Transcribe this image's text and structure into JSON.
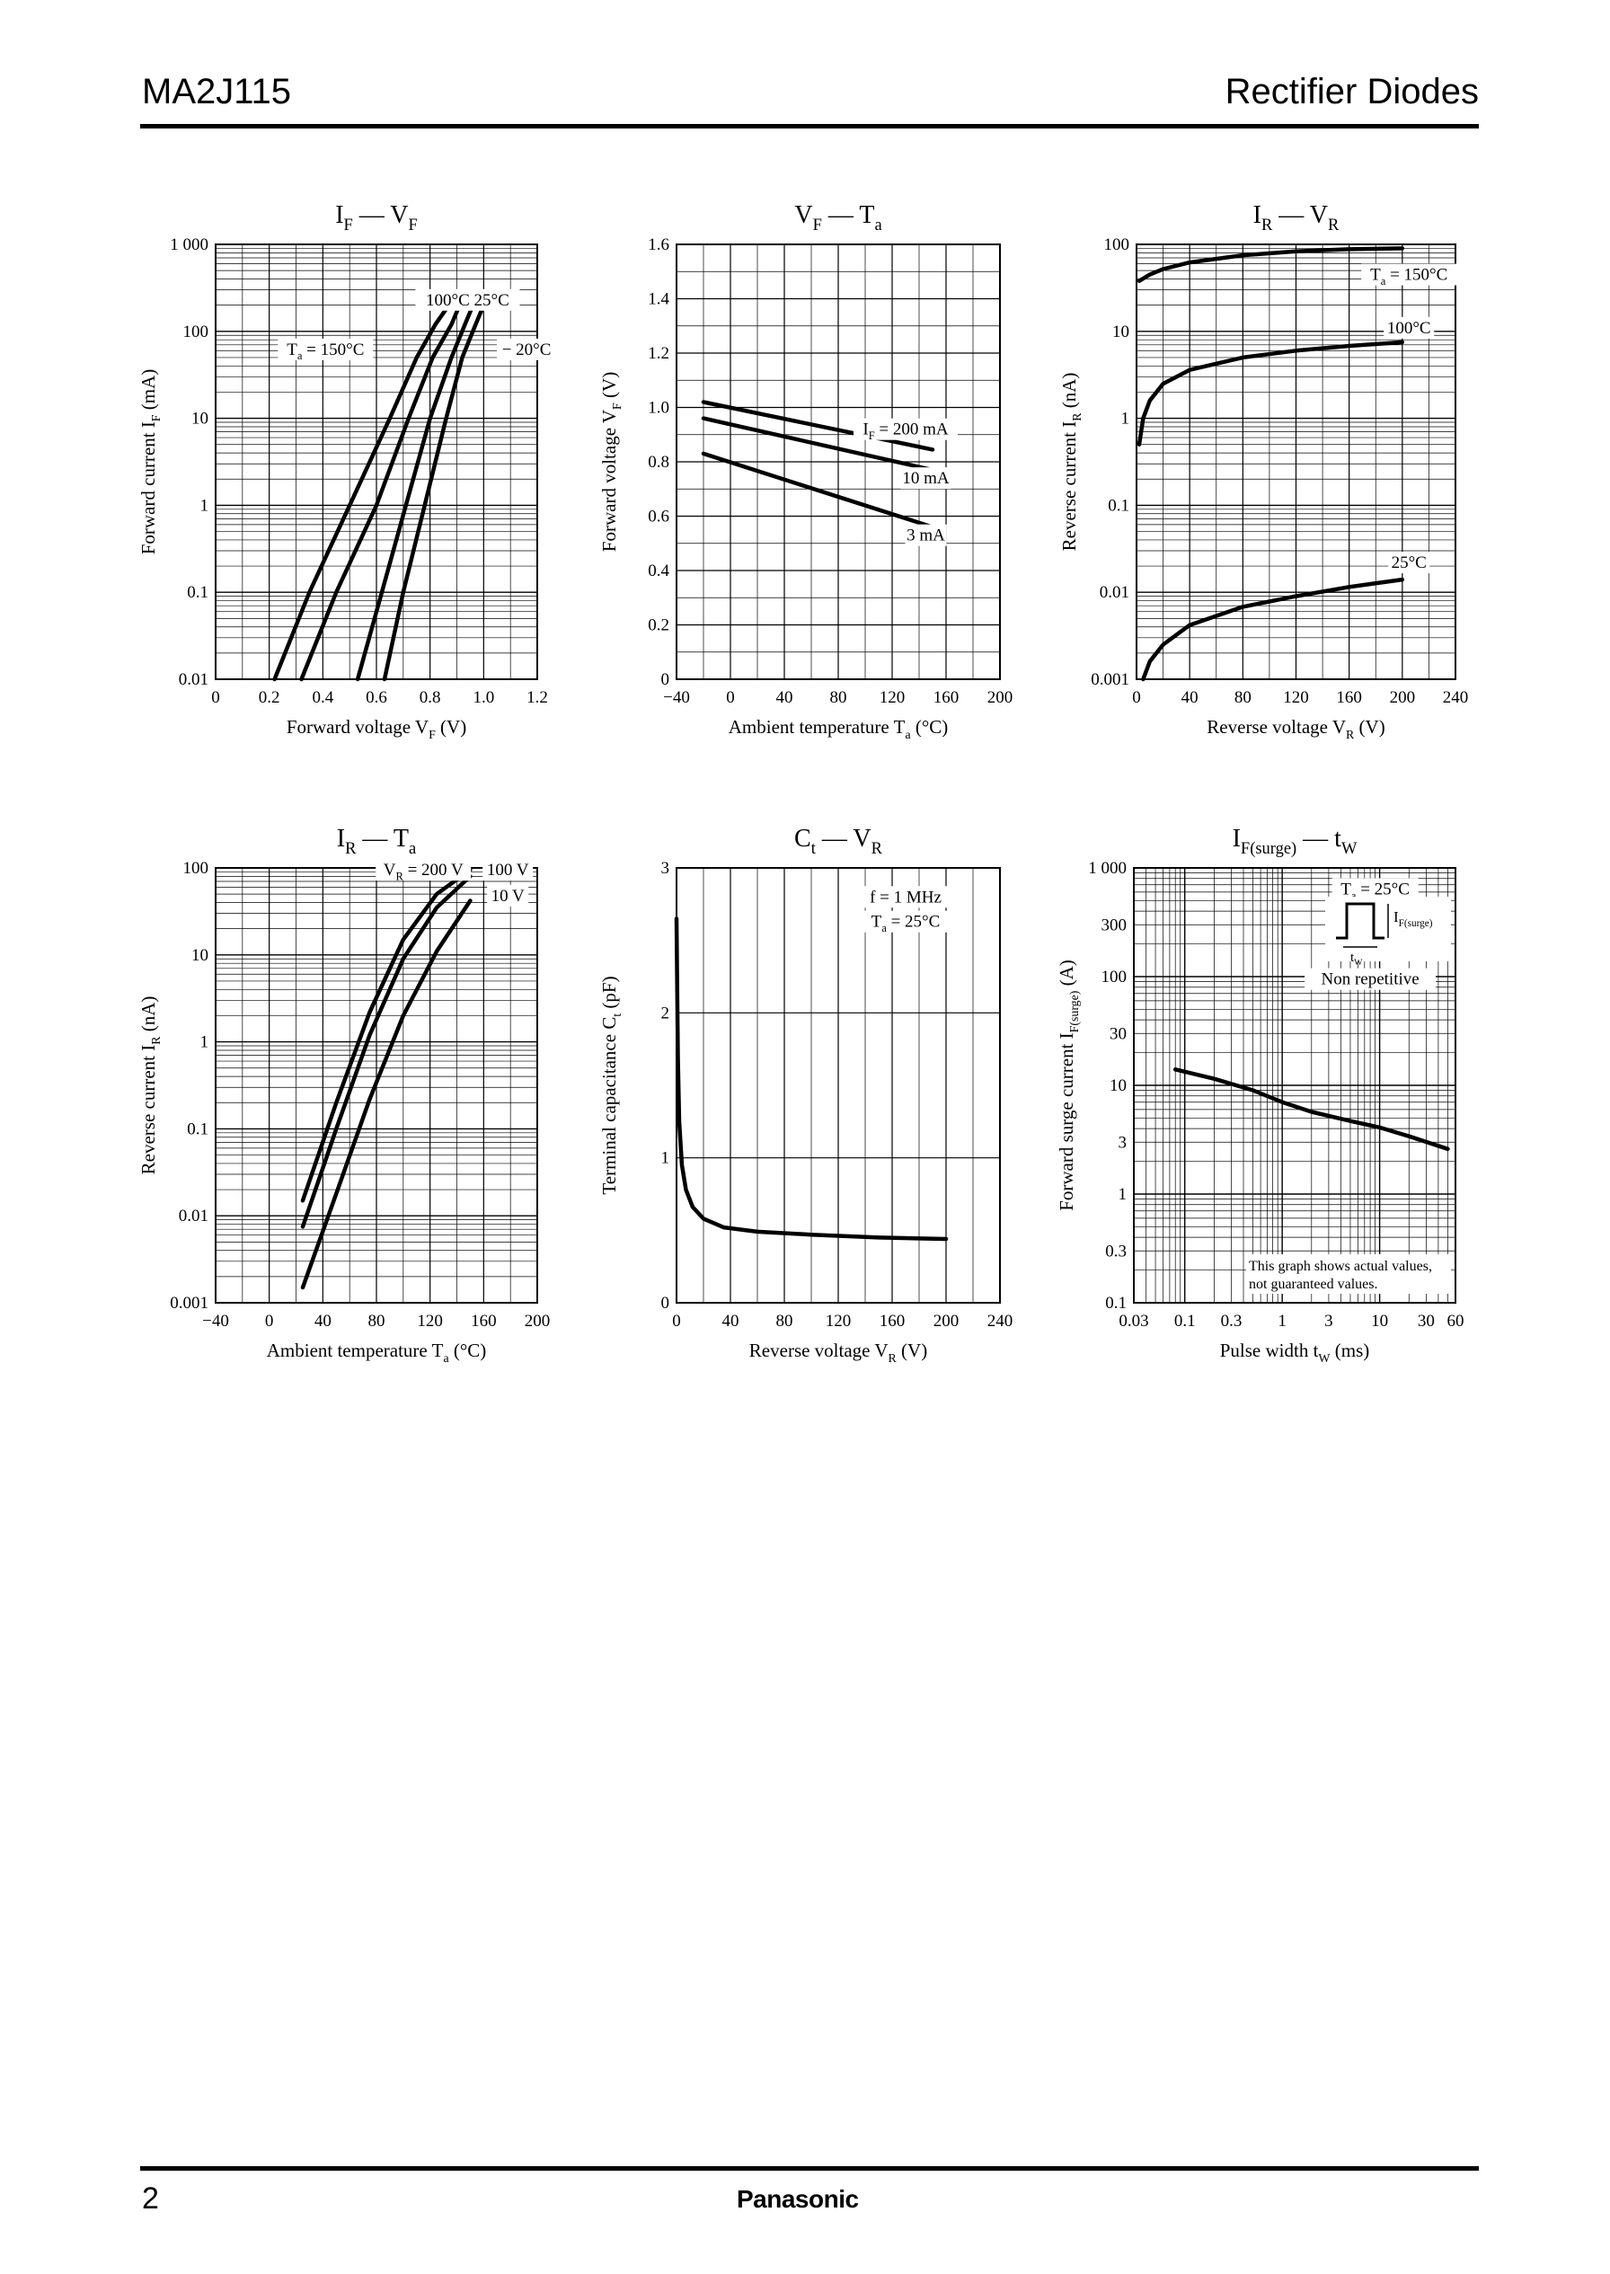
{
  "header": {
    "part_number": "MA2J115",
    "category": "Rectifier Diodes"
  },
  "footer": {
    "page_number": "2",
    "brand": "Panasonic"
  },
  "chart_data": [
    {
      "id": "if-vf",
      "type": "line",
      "title": {
        "main": "I",
        "sub": "F",
        "sep": " — ",
        "main2": "V",
        "sub2": "F"
      },
      "xlabel": {
        "text": "Forward voltage  V",
        "sub": "F",
        "unit": "  (V)"
      },
      "ylabel": {
        "text": "Forward current  I",
        "sub": "F",
        "unit": "  (mA)"
      },
      "xscale": "linear",
      "yscale": "log",
      "xlim": [
        0,
        1.2
      ],
      "ylim": [
        0.01,
        1000
      ],
      "xticks": [
        0,
        0.2,
        0.4,
        0.6,
        0.8,
        1.0,
        1.2
      ],
      "xtick_labels": [
        "0",
        "0.2",
        "0.4",
        "0.6",
        "0.8",
        "1.0",
        "1.2"
      ],
      "yticks": [
        0.01,
        0.1,
        1,
        10,
        100,
        1000
      ],
      "ytick_labels": [
        "0.01",
        "0.1",
        "1",
        "10",
        "100",
        "1 000"
      ],
      "grid": "log-minor",
      "series": [
        {
          "name": "Ta = 150°C",
          "x": [
            0.22,
            0.35,
            0.5,
            0.65,
            0.75,
            0.82,
            0.87
          ],
          "y": [
            0.01,
            0.1,
            1,
            10,
            50,
            120,
            200
          ]
        },
        {
          "name": "100°C",
          "x": [
            0.32,
            0.45,
            0.6,
            0.72,
            0.81,
            0.88,
            0.91
          ],
          "y": [
            0.01,
            0.1,
            1,
            10,
            50,
            120,
            200
          ]
        },
        {
          "name": "25°C",
          "x": [
            0.53,
            0.62,
            0.71,
            0.8,
            0.88,
            0.93,
            0.96
          ],
          "y": [
            0.01,
            0.1,
            1,
            10,
            50,
            120,
            200
          ]
        },
        {
          "name": "−20°C",
          "x": [
            0.63,
            0.7,
            0.78,
            0.86,
            0.92,
            0.97,
            1.0
          ],
          "y": [
            0.01,
            0.1,
            1,
            10,
            50,
            120,
            200
          ]
        }
      ],
      "labels": [
        {
          "text": "100°C  25°C",
          "x": 0.94,
          "y": 230
        },
        {
          "text": "T",
          "sub": "a",
          "tail": " = 150°C",
          "x": 0.41,
          "y": 62
        },
        {
          "text": "− 20°C",
          "x": 1.16,
          "y": 62
        }
      ]
    },
    {
      "id": "vf-ta",
      "type": "line",
      "title": {
        "main": "V",
        "sub": "F",
        "sep": " — ",
        "main2": "T",
        "sub2": "a"
      },
      "xlabel": {
        "text": "Ambient temperature  T",
        "sub": "a",
        "unit": "  (°C)"
      },
      "ylabel": {
        "text": "Forward voltage  V",
        "sub": "F",
        "unit": "  (V)"
      },
      "xscale": "linear",
      "yscale": "linear",
      "xlim": [
        -40,
        200
      ],
      "ylim": [
        0,
        1.6
      ],
      "xticks": [
        -40,
        0,
        40,
        80,
        120,
        160,
        200
      ],
      "xtick_labels": [
        "−40",
        "0",
        "40",
        "80",
        "120",
        "160",
        "200"
      ],
      "yticks": [
        0,
        0.2,
        0.4,
        0.6,
        0.8,
        1.0,
        1.2,
        1.4,
        1.6
      ],
      "ytick_labels": [
        "0",
        "0.2",
        "0.4",
        "0.6",
        "0.8",
        "1.0",
        "1.2",
        "1.4",
        "1.6"
      ],
      "grid": "linear-minor",
      "series": [
        {
          "name": "IF = 200 mA",
          "x": [
            -20,
            150
          ],
          "y": [
            1.02,
            0.845
          ]
        },
        {
          "name": "10 mA",
          "x": [
            -20,
            150
          ],
          "y": [
            0.96,
            0.77
          ]
        },
        {
          "name": "3 mA",
          "x": [
            -20,
            150
          ],
          "y": [
            0.83,
            0.56
          ]
        }
      ],
      "labels": [
        {
          "text": "I",
          "sub": "F",
          "tail": " = 200 mA",
          "x": 130,
          "y": 0.92
        },
        {
          "text": "10 mA",
          "x": 145,
          "y": 0.74
        },
        {
          "text": "3 mA",
          "x": 145,
          "y": 0.53
        }
      ]
    },
    {
      "id": "ir-vr",
      "type": "line",
      "title": {
        "main": "I",
        "sub": "R",
        "sep": " — ",
        "main2": "V",
        "sub2": "R"
      },
      "xlabel": {
        "text": "Reverse voltage  V",
        "sub": "R",
        "unit": "  (V)"
      },
      "ylabel": {
        "text": "Reverse current  I",
        "sub": "R",
        "unit": "  (nA)"
      },
      "xscale": "linear",
      "yscale": "log",
      "xlim": [
        0,
        240
      ],
      "ylim": [
        0.001,
        100
      ],
      "xticks": [
        0,
        40,
        80,
        120,
        160,
        200,
        240
      ],
      "xtick_labels": [
        "0",
        "40",
        "80",
        "120",
        "160",
        "200",
        "240"
      ],
      "yticks": [
        0.001,
        0.01,
        0.1,
        1,
        10,
        100
      ],
      "ytick_labels": [
        "0.001",
        "0.01",
        "0.1",
        "1",
        "10",
        "100"
      ],
      "grid": "log-minor",
      "series": [
        {
          "name": "Ta = 150°C",
          "x": [
            2,
            10,
            20,
            40,
            80,
            120,
            160,
            200
          ],
          "y": [
            38,
            45,
            52,
            62,
            75,
            83,
            88,
            90
          ]
        },
        {
          "name": "100°C",
          "x": [
            2,
            5,
            10,
            20,
            40,
            80,
            120,
            160,
            200
          ],
          "y": [
            0.5,
            1.0,
            1.6,
            2.5,
            3.6,
            5.0,
            6.0,
            6.8,
            7.5
          ]
        },
        {
          "name": "25°C",
          "x": [
            5,
            10,
            20,
            40,
            80,
            120,
            160,
            200
          ],
          "y": [
            0.001,
            0.0016,
            0.0025,
            0.0042,
            0.0068,
            0.009,
            0.0115,
            0.014
          ]
        }
      ],
      "labels": [
        {
          "text": "T",
          "sub": "a",
          "tail": " = 150°C",
          "x": 205,
          "y": 45
        },
        {
          "text": "100°C",
          "x": 205,
          "y": 11
        },
        {
          "text": "25°C",
          "x": 205,
          "y": 0.022
        }
      ]
    },
    {
      "id": "ir-ta",
      "type": "line",
      "title": {
        "main": "I",
        "sub": "R",
        "sep": " — ",
        "main2": "T",
        "sub2": "a"
      },
      "xlabel": {
        "text": "Ambient temperature  T",
        "sub": "a",
        "unit": "  (°C)"
      },
      "ylabel": {
        "text": "Reverse current  I",
        "sub": "R",
        "unit": "  (nA)"
      },
      "xscale": "linear",
      "yscale": "log",
      "xlim": [
        -40,
        200
      ],
      "ylim": [
        0.001,
        100
      ],
      "xticks": [
        -40,
        0,
        40,
        80,
        120,
        160,
        200
      ],
      "xtick_labels": [
        "−40",
        "0",
        "40",
        "80",
        "120",
        "160",
        "200"
      ],
      "yticks": [
        0.001,
        0.01,
        0.1,
        1,
        10,
        100
      ],
      "ytick_labels": [
        "0.001",
        "0.01",
        "0.1",
        "1",
        "10",
        "100"
      ],
      "grid": "log-minor",
      "series": [
        {
          "name": "VR = 200 V",
          "x": [
            25,
            50,
            75,
            100,
            125,
            150
          ],
          "y": [
            0.015,
            0.2,
            2.2,
            15,
            50,
            95
          ]
        },
        {
          "name": "100 V",
          "x": [
            25,
            50,
            75,
            100,
            125,
            150
          ],
          "y": [
            0.0075,
            0.1,
            1.2,
            9,
            35,
            80
          ]
        },
        {
          "name": "10 V",
          "x": [
            25,
            50,
            75,
            100,
            125,
            150
          ],
          "y": [
            0.0015,
            0.018,
            0.22,
            2,
            11,
            42
          ]
        }
      ],
      "labels": [
        {
          "text": "V",
          "sub": "R",
          "tail": " = 200 V",
          "x": 115,
          "y": 95
        },
        {
          "text": "100 V",
          "x": 178,
          "y": 95
        },
        {
          "text": "10 V",
          "x": 178,
          "y": 48
        }
      ]
    },
    {
      "id": "ct-vr",
      "type": "line",
      "title": {
        "main": "C",
        "sub": "t",
        "sep": " — ",
        "main2": "V",
        "sub2": "R"
      },
      "xlabel": {
        "text": "Reverse voltage  V",
        "sub": "R",
        "unit": "  (V)"
      },
      "ylabel": {
        "text": "Terminal capacitance  C",
        "sub": "t",
        "unit": "  (pF)"
      },
      "xscale": "linear",
      "yscale": "linear",
      "xlim": [
        0,
        240
      ],
      "ylim": [
        0,
        3
      ],
      "xticks": [
        0,
        40,
        80,
        120,
        160,
        200,
        240
      ],
      "xtick_labels": [
        "0",
        "40",
        "80",
        "120",
        "160",
        "200",
        "240"
      ],
      "yticks": [
        0,
        1,
        2,
        3
      ],
      "ytick_labels": [
        "0",
        "1",
        "2",
        "3"
      ],
      "grid": "linear",
      "series": [
        {
          "name": "Ct",
          "x": [
            0,
            1,
            2,
            4,
            7,
            12,
            20,
            35,
            60,
            100,
            150,
            200
          ],
          "y": [
            2.65,
            1.7,
            1.25,
            0.95,
            0.78,
            0.66,
            0.58,
            0.52,
            0.49,
            0.47,
            0.45,
            0.44
          ]
        }
      ],
      "labels": [
        {
          "text": "f = 1 MHz",
          "x": 170,
          "y": 2.8
        },
        {
          "text": "T",
          "sub": "a",
          "tail": " = 25°C",
          "x": 170,
          "y": 2.63
        }
      ]
    },
    {
      "id": "ifsurge-tw",
      "type": "line",
      "title": {
        "main": "I",
        "sub": "F(surge)",
        "sep": " — ",
        "main2": "t",
        "sub2": "W"
      },
      "xlabel": {
        "text": "Pulse width  t",
        "sub": "W",
        "unit": "  (ms)"
      },
      "ylabel": {
        "text": "Forward surge current  I",
        "sub": "F(surge)",
        "unit": "  (A)"
      },
      "xscale": "log",
      "yscale": "log",
      "xlim": [
        0.03,
        60
      ],
      "ylim": [
        0.1,
        1000
      ],
      "xticks": [
        0.03,
        0.1,
        0.3,
        1,
        3,
        10,
        30,
        60
      ],
      "xtick_labels": [
        "0.03",
        "0.1",
        "0.3",
        "1",
        "3",
        "10",
        "30",
        "60"
      ],
      "yticks": [
        0.1,
        0.3,
        1,
        3,
        10,
        30,
        100,
        300,
        1000
      ],
      "ytick_labels": [
        "0.1",
        "0.3",
        "1",
        "3",
        "10",
        "30",
        "100",
        "300",
        "1 000"
      ],
      "grid": "log-minor",
      "series": [
        {
          "name": "IF(surge)",
          "x": [
            0.08,
            0.2,
            0.5,
            1,
            2,
            5,
            10,
            20,
            50
          ],
          "y": [
            14,
            11.5,
            9,
            7,
            5.7,
            4.7,
            4.1,
            3.4,
            2.6
          ]
        }
      ],
      "labels": [
        {
          "text": "T",
          "sub": "a",
          "tail": " = 25°C",
          "x": 9,
          "y": 640
        },
        {
          "text": "Non repetitive",
          "x": 8,
          "y": 95
        }
      ],
      "inset": {
        "if_label": "I",
        "if_sub": "F(surge)",
        "tw_label": "t",
        "tw_sub": "W"
      },
      "note": [
        "This graph shows actual values,",
        "not guaranteed values."
      ]
    }
  ]
}
